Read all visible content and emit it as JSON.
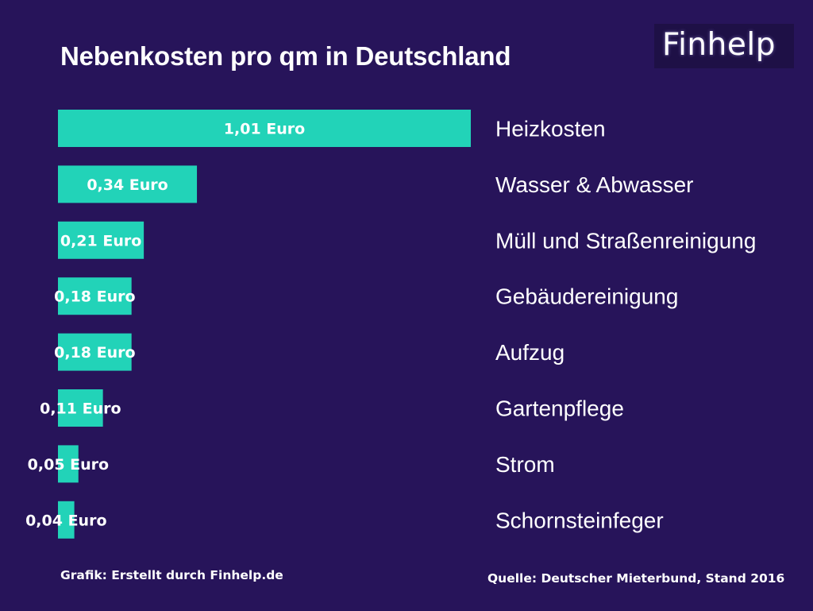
{
  "chart_data": {
    "type": "bar",
    "orientation": "horizontal",
    "title": "Nebenkosten pro qm in Deutschland",
    "categories": [
      "Heizkosten",
      "Wasser & Abwasser",
      "Müll und Straßenreinigung",
      "Gebäudereinigung",
      "Aufzug",
      "Gartenpflege",
      "Strom",
      "Schornsteinfeger"
    ],
    "values": [
      1.01,
      0.34,
      0.21,
      0.18,
      0.18,
      0.11,
      0.05,
      0.04
    ],
    "value_labels": [
      "1,01 Euro",
      "0,34 Euro",
      "0,21 Euro",
      "0,18 Euro",
      "0,18 Euro",
      "0,11 Euro",
      "0,05 Euro",
      "0,04 Euro"
    ],
    "bar_color": "#22d3b8",
    "background_color": "#27145a",
    "legend": "none",
    "grid": false
  },
  "logo": {
    "text": "Finhelp"
  },
  "footer": {
    "left": "Grafik: Erstellt durch Finhelp.de",
    "right": "Quelle: Deutscher Mieterbund, Stand 2016"
  }
}
